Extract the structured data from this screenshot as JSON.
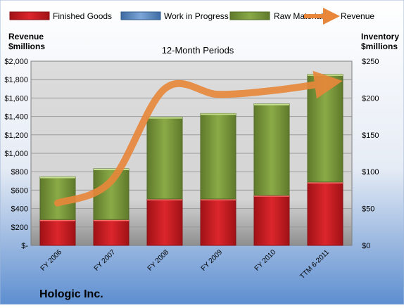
{
  "chart_data": {
    "type": "bar",
    "stacked": true,
    "title": "12-Month Periods",
    "company": "Hologic Inc.",
    "left_axis_label": [
      "Revenue",
      "$millions"
    ],
    "right_axis_label": [
      "Inventory",
      "$millions"
    ],
    "categories": [
      "FY 2006",
      "FY 2007",
      "FY 2008",
      "FY 2009",
      "FY 2010",
      "TTM 6-2011"
    ],
    "left_axis": {
      "min": 0,
      "max": 2000,
      "step": 200,
      "tick_labels": [
        "$-",
        "$200",
        "$400",
        "$600",
        "$800",
        "$1,000",
        "$1,200",
        "$1,400",
        "$1,600",
        "$1,800",
        "$2,000"
      ]
    },
    "right_axis": {
      "min": 0,
      "max": 250,
      "step": 50,
      "tick_labels": [
        "$0",
        "$50",
        "$100",
        "$150",
        "$200",
        "$250"
      ]
    },
    "series": [
      {
        "name": "Finished Goods",
        "axis": "right",
        "color": "#c0181d",
        "values": [
          35,
          35,
          63,
          63,
          68,
          86
        ]
      },
      {
        "name": "Work in Progress",
        "axis": "right",
        "color": "#4f81bd",
        "values": [
          0,
          0,
          0,
          0,
          0,
          0
        ]
      },
      {
        "name": "Raw Materials",
        "axis": "right",
        "color": "#77933c",
        "values": [
          58,
          69,
          111,
          116,
          124,
          146
        ]
      },
      {
        "name": "Revenue",
        "axis": "left",
        "type": "line",
        "color": "#e8873a",
        "values": [
          460,
          700,
          1700,
          1640,
          1680,
          1760
        ]
      }
    ],
    "legend_position": "top",
    "grid": true
  }
}
